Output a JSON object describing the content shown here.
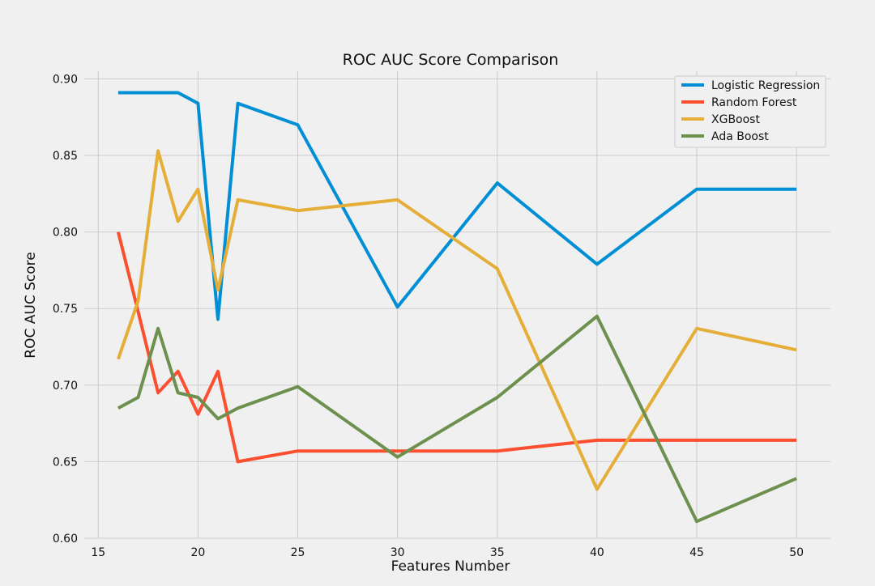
{
  "chart_data": {
    "type": "line",
    "title": "ROC AUC Score Comparison",
    "xlabel": "Features Number",
    "ylabel": "ROC AUC Score",
    "xlim": [
      14.3,
      51.7
    ],
    "ylim": [
      0.6,
      0.905
    ],
    "xticks": [
      15,
      20,
      25,
      30,
      35,
      40,
      45,
      50
    ],
    "yticks": [
      0.6,
      0.65,
      0.7,
      0.75,
      0.8,
      0.85,
      0.9
    ],
    "xtick_labels": [
      "15",
      "20",
      "25",
      "30",
      "35",
      "40",
      "45",
      "50"
    ],
    "ytick_labels": [
      "0.60",
      "0.65",
      "0.70",
      "0.75",
      "0.80",
      "0.85",
      "0.90"
    ],
    "grid": true,
    "legend_position": "top-right",
    "x": [
      16,
      17,
      18,
      19,
      20,
      21,
      22,
      25,
      30,
      35,
      40,
      45,
      50
    ],
    "series": [
      {
        "name": "Logistic Regression",
        "color": "#008fd5",
        "values": [
          0.891,
          0.891,
          0.891,
          0.891,
          0.884,
          0.743,
          0.884,
          0.87,
          0.751,
          0.832,
          0.779,
          0.828,
          0.828
        ]
      },
      {
        "name": "Random Forest",
        "color": "#fc4f30",
        "values": [
          0.8,
          0.748,
          0.695,
          0.709,
          0.681,
          0.709,
          0.65,
          0.657,
          0.657,
          0.657,
          0.664,
          0.664,
          0.664
        ]
      },
      {
        "name": "XGBoost",
        "color": "#e5ae38",
        "values": [
          0.717,
          0.755,
          0.853,
          0.807,
          0.828,
          0.762,
          0.821,
          0.814,
          0.821,
          0.776,
          0.632,
          0.737,
          0.723
        ]
      },
      {
        "name": "Ada Boost",
        "color": "#6d904f",
        "values": [
          0.685,
          0.692,
          0.737,
          0.695,
          0.692,
          0.678,
          0.685,
          0.699,
          0.653,
          0.692,
          0.745,
          0.611,
          0.639
        ]
      }
    ]
  }
}
